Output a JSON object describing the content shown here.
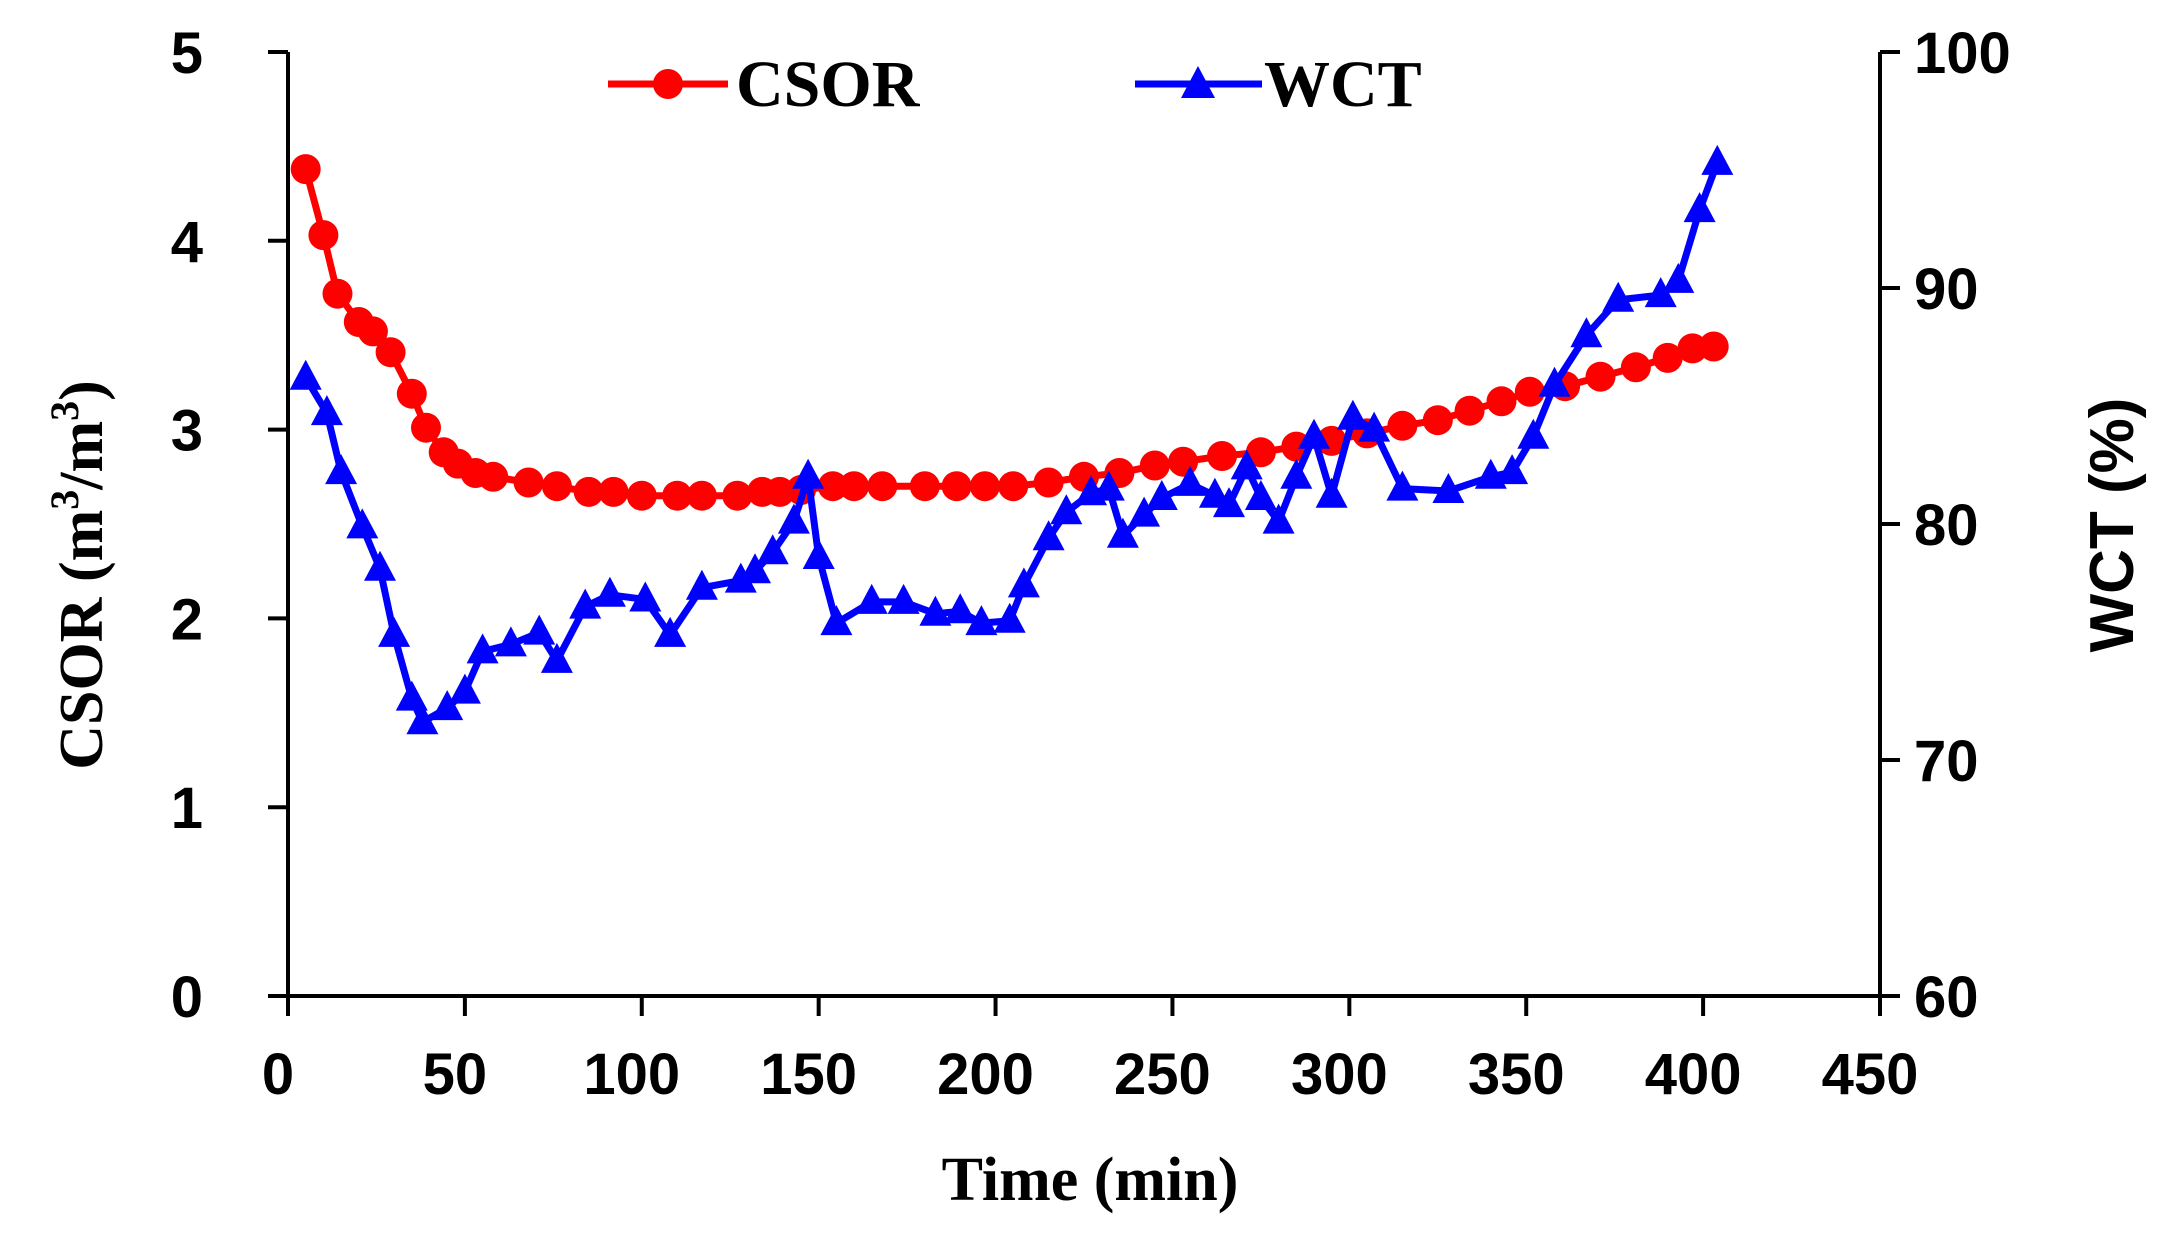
{
  "chart_data": {
    "type": "line",
    "title": "",
    "xlabel": "Time (min)",
    "ylabel_left": "CSOR (m³/m³)",
    "ylabel_left_base": "CSOR (m",
    "ylabel_left_sup1": "3",
    "ylabel_left_mid": "/m",
    "ylabel_left_sup2": "3",
    "ylabel_left_end": ")",
    "ylabel_right": "WCT (%)",
    "xlim": [
      0,
      450
    ],
    "ylim_left": [
      0,
      5
    ],
    "ylim_right": [
      60,
      100
    ],
    "x_ticks": [
      "0",
      "50",
      "100",
      "150",
      "200",
      "250",
      "300",
      "350",
      "400",
      "450"
    ],
    "y_left_ticks": [
      "0",
      "1",
      "2",
      "3",
      "4",
      "5"
    ],
    "y_right_ticks": [
      "60",
      "70",
      "80",
      "90",
      "100"
    ],
    "legend_position": "top-center",
    "series": [
      {
        "name": "CSOR",
        "axis": "left",
        "color": "#ff0000",
        "marker": "circle",
        "x": [
          5,
          10,
          14,
          20,
          24,
          29,
          35,
          39,
          44,
          48,
          53,
          58,
          68,
          76,
          85,
          92,
          100,
          110,
          117,
          127,
          134,
          139,
          145,
          154,
          160,
          168,
          180,
          189,
          197,
          205,
          215,
          225,
          235,
          245,
          253,
          264,
          275,
          285,
          295,
          305,
          315,
          325,
          334,
          343,
          351,
          361,
          371,
          381,
          390,
          397,
          403
        ],
        "y": [
          4.38,
          4.03,
          3.72,
          3.57,
          3.52,
          3.41,
          3.19,
          3.01,
          2.88,
          2.82,
          2.77,
          2.75,
          2.72,
          2.7,
          2.67,
          2.67,
          2.65,
          2.65,
          2.65,
          2.65,
          2.67,
          2.67,
          2.68,
          2.7,
          2.7,
          2.7,
          2.7,
          2.7,
          2.7,
          2.7,
          2.72,
          2.75,
          2.77,
          2.81,
          2.83,
          2.86,
          2.88,
          2.91,
          2.94,
          2.98,
          3.02,
          3.05,
          3.1,
          3.15,
          3.2,
          3.23,
          3.28,
          3.33,
          3.38,
          3.43,
          3.44
        ]
      },
      {
        "name": "WCT",
        "axis": "right",
        "color": "#0000ff",
        "marker": "triangle",
        "x": [
          5,
          11,
          15,
          21,
          26,
          30,
          35,
          38,
          45,
          50,
          55,
          63,
          71,
          76,
          84,
          91,
          101,
          108,
          117,
          128,
          132,
          137,
          143,
          147,
          150,
          155,
          165,
          174,
          183,
          190,
          196,
          204,
          208,
          215,
          220,
          227,
          232,
          236,
          242,
          247,
          255,
          262,
          266,
          271,
          275,
          280,
          285,
          290,
          295,
          301,
          307,
          315,
          328,
          340,
          346,
          352,
          358,
          367,
          376,
          388,
          393,
          399,
          404
        ],
        "y": [
          86.2,
          84.7,
          82.2,
          79.9,
          78.1,
          75.3,
          72.6,
          71.6,
          72.2,
          72.9,
          74.6,
          74.9,
          75.4,
          74.2,
          76.5,
          77.0,
          76.8,
          75.3,
          77.3,
          77.6,
          78.0,
          78.8,
          80.1,
          82.0,
          78.6,
          75.8,
          76.7,
          76.7,
          76.2,
          76.3,
          75.8,
          75.9,
          77.4,
          79.4,
          80.5,
          81.3,
          81.5,
          79.5,
          80.4,
          81.1,
          81.7,
          81.2,
          80.8,
          82.4,
          81.1,
          80.1,
          82.0,
          83.7,
          81.2,
          84.5,
          84.0,
          81.5,
          81.4,
          82.0,
          82.2,
          83.7,
          85.9,
          88.0,
          89.5,
          89.7,
          90.3,
          93.3,
          95.3
        ]
      }
    ]
  }
}
